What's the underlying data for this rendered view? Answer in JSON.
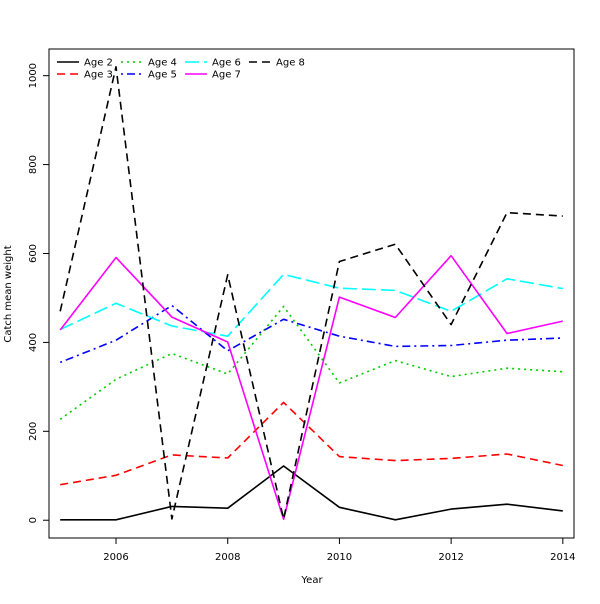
{
  "chart_data": {
    "type": "line",
    "title": "",
    "xlabel": "Year",
    "ylabel": "Catch mean weight",
    "xlim": [
      2004.8,
      2014.2
    ],
    "ylim": [
      -40,
      1060
    ],
    "x_ticks": [
      2006,
      2008,
      2010,
      2012,
      2014
    ],
    "y_ticks": [
      0,
      200,
      400,
      600,
      800,
      1000
    ],
    "grid": false,
    "legend_position": "top-left",
    "x": [
      2005,
      2006,
      2007,
      2008,
      2009,
      2010,
      2011,
      2012,
      2013,
      2014
    ],
    "series": [
      {
        "name": "Age 2",
        "color": "#000000",
        "dash": "solid",
        "values": [
          1,
          1,
          31,
          27,
          122,
          29,
          1,
          25,
          36,
          21
        ]
      },
      {
        "name": "Age 3",
        "color": "#ff0000",
        "dash": "dashed",
        "values": [
          80,
          101,
          147,
          140,
          265,
          143,
          134,
          139,
          149,
          123
        ]
      },
      {
        "name": "Age 4",
        "color": "#00cd00",
        "dash": "dotted",
        "values": [
          227,
          317,
          375,
          329,
          481,
          309,
          359,
          323,
          342,
          334
        ]
      },
      {
        "name": "Age 5",
        "color": "#0000ff",
        "dash": "dotdash",
        "values": [
          355,
          405,
          483,
          381,
          452,
          414,
          391,
          393,
          405,
          410
        ]
      },
      {
        "name": "Age 6",
        "color": "#00ffff",
        "dash": "longdash",
        "values": [
          429,
          488,
          437,
          414,
          553,
          522,
          517,
          470,
          543,
          521
        ]
      },
      {
        "name": "Age 7",
        "color": "#ff00ff",
        "dash": "solid",
        "values": [
          428,
          591,
          457,
          401,
          2,
          502,
          456,
          595,
          420,
          448
        ]
      },
      {
        "name": "Age 8",
        "color": "#000000",
        "dash": "dashed",
        "values": [
          470,
          1020,
          3,
          552,
          3,
          582,
          621,
          440,
          692,
          684
        ]
      }
    ]
  }
}
